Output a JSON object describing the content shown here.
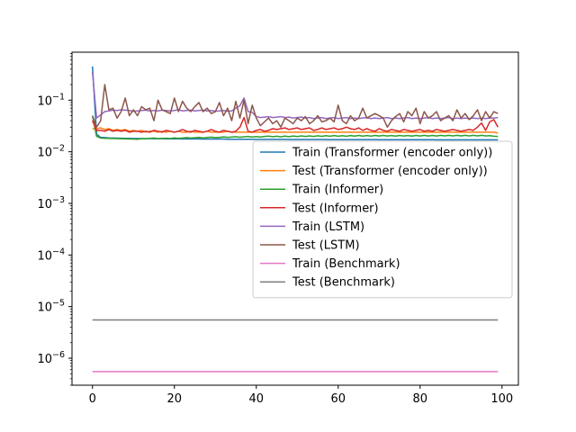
{
  "chart_data": {
    "type": "line",
    "title": "",
    "xlabel": "",
    "ylabel": "",
    "y_scale": "log",
    "xlim": [
      -5,
      104
    ],
    "ylim": [
      3e-07,
      0.85
    ],
    "x_ticks": [
      0,
      20,
      40,
      60,
      80,
      100
    ],
    "x_tick_labels": [
      "0",
      "20",
      "40",
      "60",
      "80",
      "100"
    ],
    "y_ticks": [
      1e-06,
      1e-05,
      0.0001,
      0.001,
      0.01,
      0.1
    ],
    "y_tick_labels": [
      {
        "base": "10",
        "exp": "−6"
      },
      {
        "base": "10",
        "exp": "−5"
      },
      {
        "base": "10",
        "exp": "−4"
      },
      {
        "base": "10",
        "exp": "−3"
      },
      {
        "base": "10",
        "exp": "−2"
      },
      {
        "base": "10",
        "exp": "−1"
      }
    ],
    "legend_position": "center-right",
    "grid": false,
    "x_start": 0,
    "x_end": 99,
    "series": [
      {
        "name": "Train (Transformer (encoder only))",
        "color": "#1f77b4",
        "values": [
          0.45,
          0.022,
          0.019,
          0.0188,
          0.0186,
          0.0185,
          0.0184,
          0.0183,
          0.0182,
          0.0182,
          0.0181,
          0.0181,
          0.018,
          0.018,
          0.018,
          0.0179,
          0.0179,
          0.0179,
          0.0178,
          0.0178,
          0.0178,
          0.0178,
          0.0177,
          0.0177,
          0.0177,
          0.0177,
          0.0177,
          0.0176,
          0.0176,
          0.0176,
          0.0176,
          0.0176,
          0.0176,
          0.0175,
          0.0175,
          0.0175,
          0.0175,
          0.0175,
          0.0175,
          0.0175,
          0.0174,
          0.0174,
          0.0174,
          0.0174,
          0.0174,
          0.0174,
          0.0174,
          0.0174,
          0.0173,
          0.0173,
          0.0173,
          0.0173,
          0.0173,
          0.0173,
          0.0173,
          0.0173,
          0.0173,
          0.0173,
          0.0172,
          0.0172,
          0.0172,
          0.0172,
          0.0172,
          0.0172,
          0.0172,
          0.0172,
          0.0172,
          0.0172,
          0.0172,
          0.0172,
          0.0171,
          0.0171,
          0.0171,
          0.0171,
          0.0171,
          0.0171,
          0.0171,
          0.0171,
          0.0171,
          0.0171,
          0.0171,
          0.0171,
          0.0171,
          0.0171,
          0.017,
          0.017,
          0.017,
          0.017,
          0.017,
          0.017,
          0.017,
          0.017,
          0.017,
          0.017,
          0.017,
          0.017,
          0.017,
          0.017,
          0.017,
          0.017
        ]
      },
      {
        "name": "Test (Transformer (encoder only))",
        "color": "#ff7f0e",
        "values": [
          0.028,
          0.028,
          0.029,
          0.027,
          0.028,
          0.026,
          0.027,
          0.026,
          0.027,
          0.025,
          0.026,
          0.025,
          0.026,
          0.024,
          0.025,
          0.025,
          0.024,
          0.025,
          0.024,
          0.025,
          0.024,
          0.025,
          0.024,
          0.024,
          0.025,
          0.024,
          0.024,
          0.024,
          0.025,
          0.024,
          0.024,
          0.024,
          0.024,
          0.025,
          0.024,
          0.024,
          0.024,
          0.024,
          0.024,
          0.024,
          0.024,
          0.024,
          0.024,
          0.024,
          0.024,
          0.024,
          0.024,
          0.024,
          0.024,
          0.024,
          0.024,
          0.024,
          0.024,
          0.024,
          0.024,
          0.024,
          0.024,
          0.024,
          0.024,
          0.024,
          0.024,
          0.024,
          0.024,
          0.024,
          0.024,
          0.024,
          0.024,
          0.024,
          0.024,
          0.024,
          0.024,
          0.024,
          0.024,
          0.024,
          0.024,
          0.024,
          0.024,
          0.024,
          0.024,
          0.024,
          0.024,
          0.024,
          0.024,
          0.024,
          0.024,
          0.024,
          0.024,
          0.024,
          0.024,
          0.024,
          0.024,
          0.024,
          0.024,
          0.024,
          0.024,
          0.024,
          0.024,
          0.024,
          0.024,
          0.023
        ]
      },
      {
        "name": "Train (Informer)",
        "color": "#2ca02c",
        "values": [
          0.05,
          0.02,
          0.0185,
          0.0183,
          0.0182,
          0.0181,
          0.018,
          0.0179,
          0.0178,
          0.0177,
          0.0176,
          0.0175,
          0.018,
          0.0178,
          0.0182,
          0.0185,
          0.018,
          0.0182,
          0.0183,
          0.0181,
          0.0186,
          0.0182,
          0.0185,
          0.0188,
          0.0185,
          0.0187,
          0.019,
          0.0186,
          0.0189,
          0.0192,
          0.0188,
          0.019,
          0.0194,
          0.019,
          0.0193,
          0.0196,
          0.0191,
          0.0195,
          0.0198,
          0.0193,
          0.0197,
          0.0193,
          0.0198,
          0.0201,
          0.0196,
          0.02,
          0.0195,
          0.0201,
          0.0196,
          0.0202,
          0.0197,
          0.0203,
          0.0198,
          0.0203,
          0.0198,
          0.0204,
          0.0199,
          0.0205,
          0.02,
          0.0206,
          0.02,
          0.0205,
          0.02,
          0.0206,
          0.0201,
          0.0207,
          0.0201,
          0.0206,
          0.0201,
          0.0207,
          0.0202,
          0.0207,
          0.0202,
          0.0206,
          0.0201,
          0.0207,
          0.0202,
          0.0206,
          0.0201,
          0.0207,
          0.0202,
          0.0208,
          0.0202,
          0.0207,
          0.0202,
          0.0208,
          0.0203,
          0.0208,
          0.0203,
          0.0208,
          0.0203,
          0.0208,
          0.0203,
          0.0208,
          0.0203,
          0.0208,
          0.0203,
          0.0205,
          0.02,
          0.0198
        ]
      },
      {
        "name": "Test (Informer)",
        "color": "#d62728",
        "values": [
          0.04,
          0.026,
          0.026,
          0.025,
          0.027,
          0.025,
          0.026,
          0.025,
          0.026,
          0.024,
          0.025,
          0.025,
          0.024,
          0.025,
          0.024,
          0.026,
          0.025,
          0.024,
          0.026,
          0.025,
          0.024,
          0.025,
          0.027,
          0.025,
          0.024,
          0.026,
          0.025,
          0.024,
          0.025,
          0.027,
          0.025,
          0.024,
          0.026,
          0.025,
          0.024,
          0.025,
          0.03,
          0.046,
          0.025,
          0.024,
          0.026,
          0.027,
          0.025,
          0.026,
          0.028,
          0.027,
          0.028,
          0.029,
          0.027,
          0.028,
          0.029,
          0.027,
          0.028,
          0.029,
          0.026,
          0.027,
          0.029,
          0.027,
          0.028,
          0.029,
          0.027,
          0.028,
          0.03,
          0.028,
          0.027,
          0.029,
          0.026,
          0.028,
          0.026,
          0.025,
          0.028,
          0.026,
          0.025,
          0.027,
          0.026,
          0.025,
          0.027,
          0.026,
          0.025,
          0.026,
          0.027,
          0.025,
          0.026,
          0.025,
          0.027,
          0.026,
          0.025,
          0.026,
          0.027,
          0.026,
          0.025,
          0.026,
          0.027,
          0.026,
          0.03,
          0.036,
          0.026,
          0.038,
          0.042,
          0.03
        ]
      },
      {
        "name": "Train (LSTM)",
        "color": "#9467bd",
        "values": [
          0.35,
          0.045,
          0.052,
          0.06,
          0.062,
          0.064,
          0.063,
          0.065,
          0.064,
          0.063,
          0.061,
          0.062,
          0.063,
          0.064,
          0.062,
          0.063,
          0.062,
          0.064,
          0.063,
          0.062,
          0.063,
          0.065,
          0.062,
          0.063,
          0.064,
          0.062,
          0.063,
          0.064,
          0.062,
          0.063,
          0.061,
          0.062,
          0.063,
          0.061,
          0.062,
          0.07,
          0.078,
          0.11,
          0.06,
          0.058,
          0.048,
          0.046,
          0.047,
          0.048,
          0.046,
          0.047,
          0.048,
          0.046,
          0.047,
          0.045,
          0.046,
          0.047,
          0.045,
          0.046,
          0.044,
          0.045,
          0.046,
          0.044,
          0.045,
          0.046,
          0.044,
          0.045,
          0.046,
          0.044,
          0.045,
          0.044,
          0.045,
          0.046,
          0.044,
          0.045,
          0.044,
          0.045,
          0.046,
          0.044,
          0.045,
          0.044,
          0.045,
          0.046,
          0.044,
          0.045,
          0.044,
          0.045,
          0.046,
          0.044,
          0.045,
          0.044,
          0.045,
          0.046,
          0.044,
          0.045,
          0.044,
          0.045,
          0.044,
          0.045,
          0.044,
          0.045,
          0.044,
          0.045,
          0.045,
          0.046
        ]
      },
      {
        "name": "Test (LSTM)",
        "color": "#8c564b",
        "values": [
          0.05,
          0.03,
          0.04,
          0.2,
          0.065,
          0.07,
          0.045,
          0.06,
          0.11,
          0.05,
          0.065,
          0.05,
          0.075,
          0.065,
          0.07,
          0.04,
          0.1,
          0.065,
          0.06,
          0.055,
          0.11,
          0.06,
          0.095,
          0.07,
          0.06,
          0.075,
          0.09,
          0.06,
          0.07,
          0.055,
          0.06,
          0.09,
          0.05,
          0.07,
          0.04,
          0.095,
          0.045,
          0.1,
          0.035,
          0.08,
          0.045,
          0.032,
          0.038,
          0.045,
          0.035,
          0.04,
          0.03,
          0.045,
          0.04,
          0.035,
          0.045,
          0.04,
          0.048,
          0.035,
          0.04,
          0.05,
          0.038,
          0.04,
          0.045,
          0.038,
          0.08,
          0.04,
          0.035,
          0.05,
          0.04,
          0.045,
          0.07,
          0.045,
          0.05,
          0.055,
          0.05,
          0.045,
          0.03,
          0.04,
          0.048,
          0.055,
          0.038,
          0.06,
          0.05,
          0.07,
          0.035,
          0.06,
          0.045,
          0.05,
          0.06,
          0.04,
          0.045,
          0.05,
          0.04,
          0.065,
          0.045,
          0.055,
          0.042,
          0.05,
          0.065,
          0.04,
          0.06,
          0.045,
          0.06,
          0.055
        ]
      },
      {
        "name": "Train (Benchmark)",
        "color": "#e377c2",
        "constant": 5.5e-07
      },
      {
        "name": "Test (Benchmark)",
        "color": "#7f7f7f",
        "constant": 5.5e-06
      }
    ]
  }
}
